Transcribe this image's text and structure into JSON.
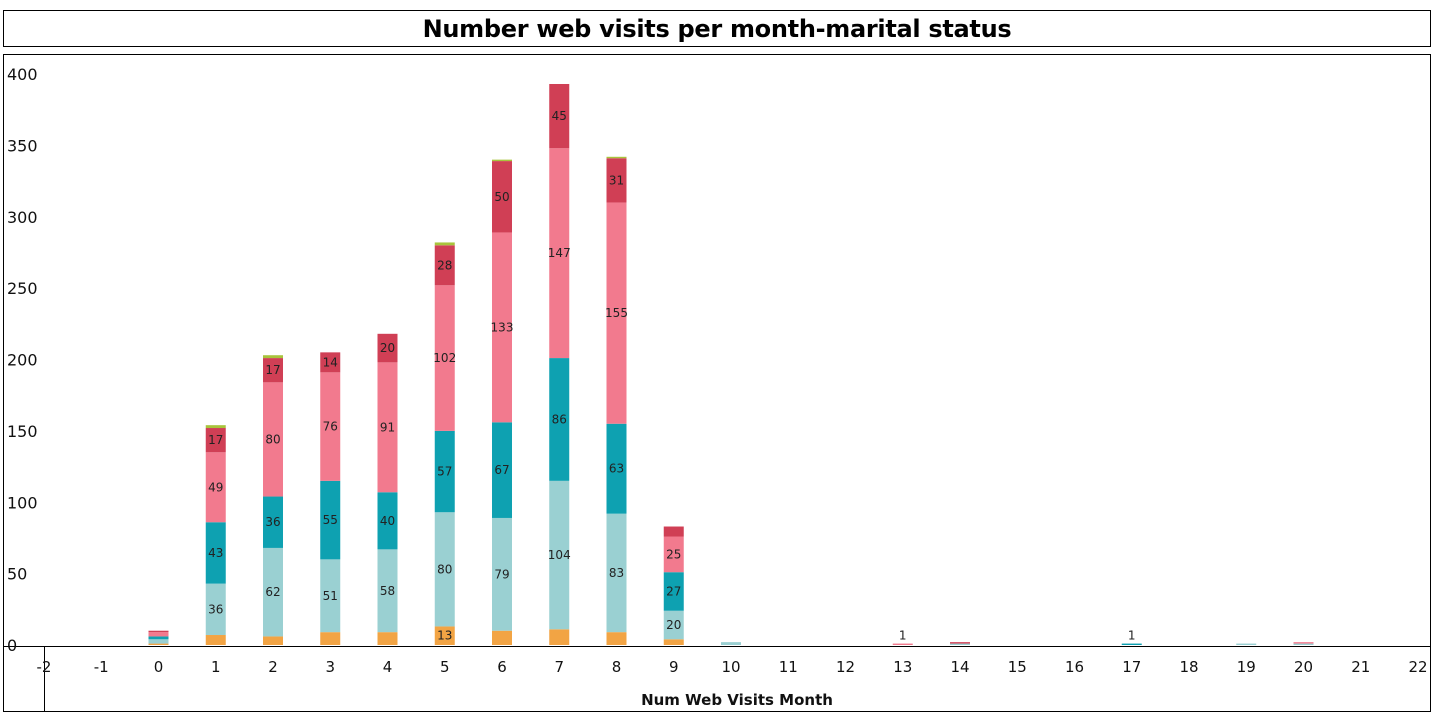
{
  "chart_data": {
    "type": "bar",
    "stacked": true,
    "title": "Number web visits per month-marital status",
    "xlabel": "Num Web Visits Month",
    "ylabel": "",
    "ylim": [
      -5,
      405
    ],
    "xlim": [
      -2,
      22
    ],
    "x_ticks": [
      "-2",
      "-1",
      "0",
      "1",
      "2",
      "3",
      "4",
      "5",
      "6",
      "7",
      "8",
      "9",
      "10",
      "11",
      "12",
      "13",
      "14",
      "15",
      "16",
      "17",
      "18",
      "19",
      "20",
      "21",
      "22"
    ],
    "y_ticks": [
      "0",
      "50",
      "100",
      "150",
      "200",
      "250",
      "300",
      "350",
      "400"
    ],
    "grid": false,
    "legend": "none",
    "series_colors": [
      "#f2a444",
      "#9ad0d2",
      "#0ea1b1",
      "#f27a8e",
      "#d03f55",
      "#a8c43c"
    ],
    "categories": [
      "0",
      "1",
      "2",
      "3",
      "4",
      "5",
      "6",
      "7",
      "8",
      "9",
      "10",
      "13",
      "14",
      "17",
      "19",
      "20"
    ],
    "series": [
      {
        "values": [
          1,
          7,
          6,
          9,
          9,
          13,
          10,
          11,
          9,
          4,
          0,
          0,
          0,
          0,
          0,
          0
        ]
      },
      {
        "values": [
          3,
          36,
          62,
          51,
          58,
          80,
          79,
          104,
          83,
          20,
          2,
          0,
          1,
          0,
          1,
          1
        ]
      },
      {
        "values": [
          2,
          43,
          36,
          55,
          40,
          57,
          67,
          86,
          63,
          27,
          0,
          0,
          0,
          1,
          0,
          0
        ]
      },
      {
        "values": [
          3,
          49,
          80,
          76,
          91,
          102,
          133,
          147,
          155,
          25,
          0,
          1,
          0,
          0,
          0,
          1
        ]
      },
      {
        "values": [
          1,
          17,
          17,
          14,
          20,
          28,
          50,
          45,
          31,
          7,
          0,
          0,
          1,
          0,
          0,
          0
        ]
      },
      {
        "values": [
          0,
          2,
          2,
          0,
          0,
          2,
          1,
          0,
          1,
          0,
          0,
          0,
          0,
          0,
          0,
          0
        ]
      }
    ],
    "data_labels": [
      [
        null,
        null,
        null,
        null,
        null,
        "13",
        null,
        null,
        null,
        null,
        null,
        null,
        null,
        null,
        null,
        null
      ],
      [
        null,
        "36",
        "62",
        "51",
        "58",
        "80",
        "79",
        "104",
        "83",
        "20",
        null,
        null,
        null,
        null,
        null,
        null
      ],
      [
        null,
        "43",
        "36",
        "55",
        "40",
        "57",
        "67",
        "86",
        "63",
        "27",
        null,
        null,
        null,
        "1",
        null,
        null
      ],
      [
        null,
        "49",
        "80",
        "76",
        "91",
        "102",
        "133",
        "147",
        "155",
        "25",
        null,
        "1",
        null,
        null,
        null,
        null
      ],
      [
        null,
        "17",
        "17",
        "14",
        "20",
        "28",
        "50",
        "45",
        "31",
        null,
        null,
        null,
        null,
        null,
        null,
        null
      ],
      [
        null,
        null,
        null,
        null,
        null,
        null,
        null,
        null,
        null,
        null,
        null,
        null,
        null,
        null,
        null,
        null
      ]
    ]
  }
}
